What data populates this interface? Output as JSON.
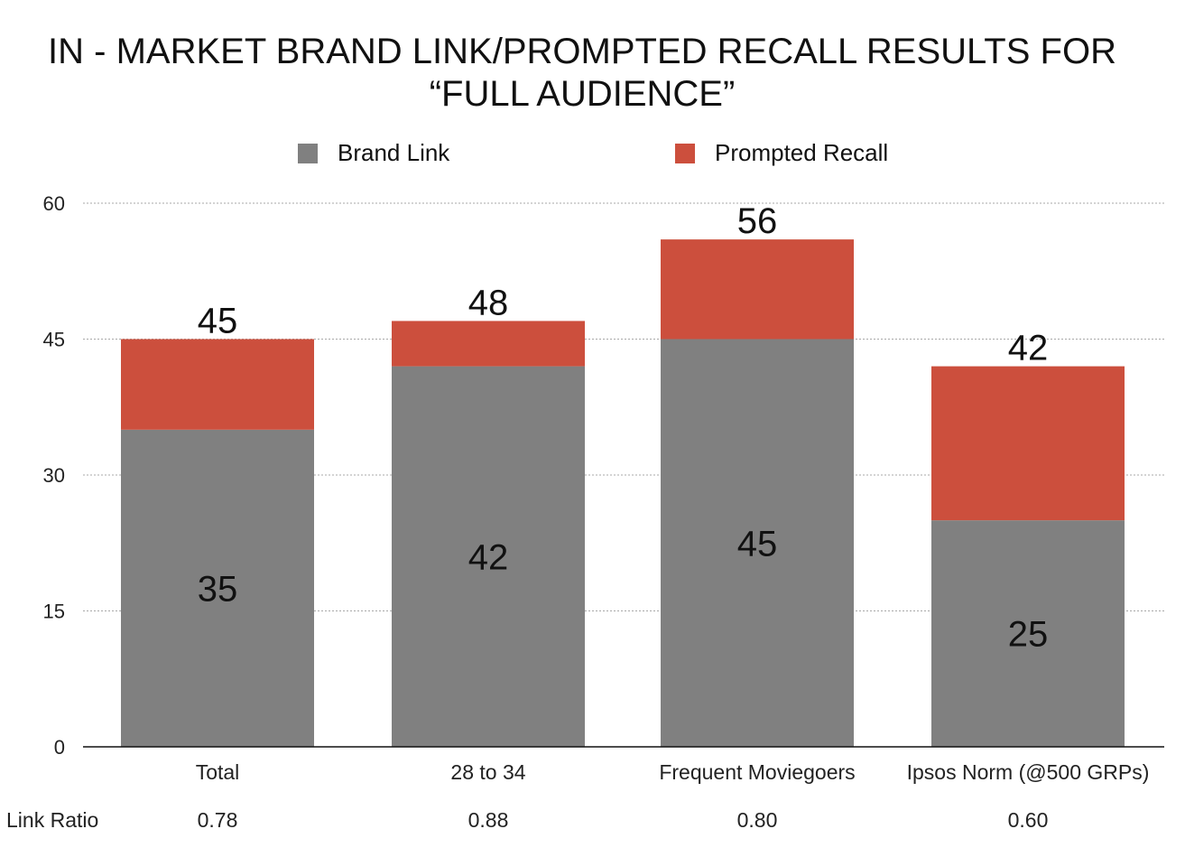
{
  "title": "IN - MARKET BRAND LINK/PROMPTED RECALL RESULTS FOR\n“FULL AUDIENCE”",
  "legend": [
    {
      "name": "Brand Link",
      "color": "#808080"
    },
    {
      "name": "Prompted Recall",
      "color": "#cc4f3d"
    }
  ],
  "link_ratio_label": "Link Ratio",
  "chart_data": {
    "type": "bar",
    "stacked": true,
    "title": "IN - MARKET BRAND LINK/PROMPTED RECALL RESULTS FOR “FULL AUDIENCE”",
    "xlabel": "",
    "ylabel": "",
    "ylim": [
      0,
      60
    ],
    "yticks": [
      "0",
      "15",
      "30",
      "45",
      "60"
    ],
    "grid": true,
    "legend_position": "top",
    "categories": [
      "Total",
      "28 to 34",
      "Frequent Moviegoers",
      "Ipsos Norm (@500 GRPs)"
    ],
    "series": [
      {
        "name": "Brand Link",
        "color": "#808080",
        "values": [
          35,
          42,
          45,
          25
        ]
      },
      {
        "name": "Prompted Recall",
        "color": "#cc4f3d",
        "values": [
          10,
          5,
          11,
          17
        ]
      }
    ],
    "inner_labels": [
      "35",
      "42",
      "45",
      "25"
    ],
    "total_labels": [
      "45",
      "48",
      "56",
      "42"
    ],
    "link_ratio": [
      "0.78",
      "0.88",
      "0.80",
      "0.60"
    ]
  }
}
